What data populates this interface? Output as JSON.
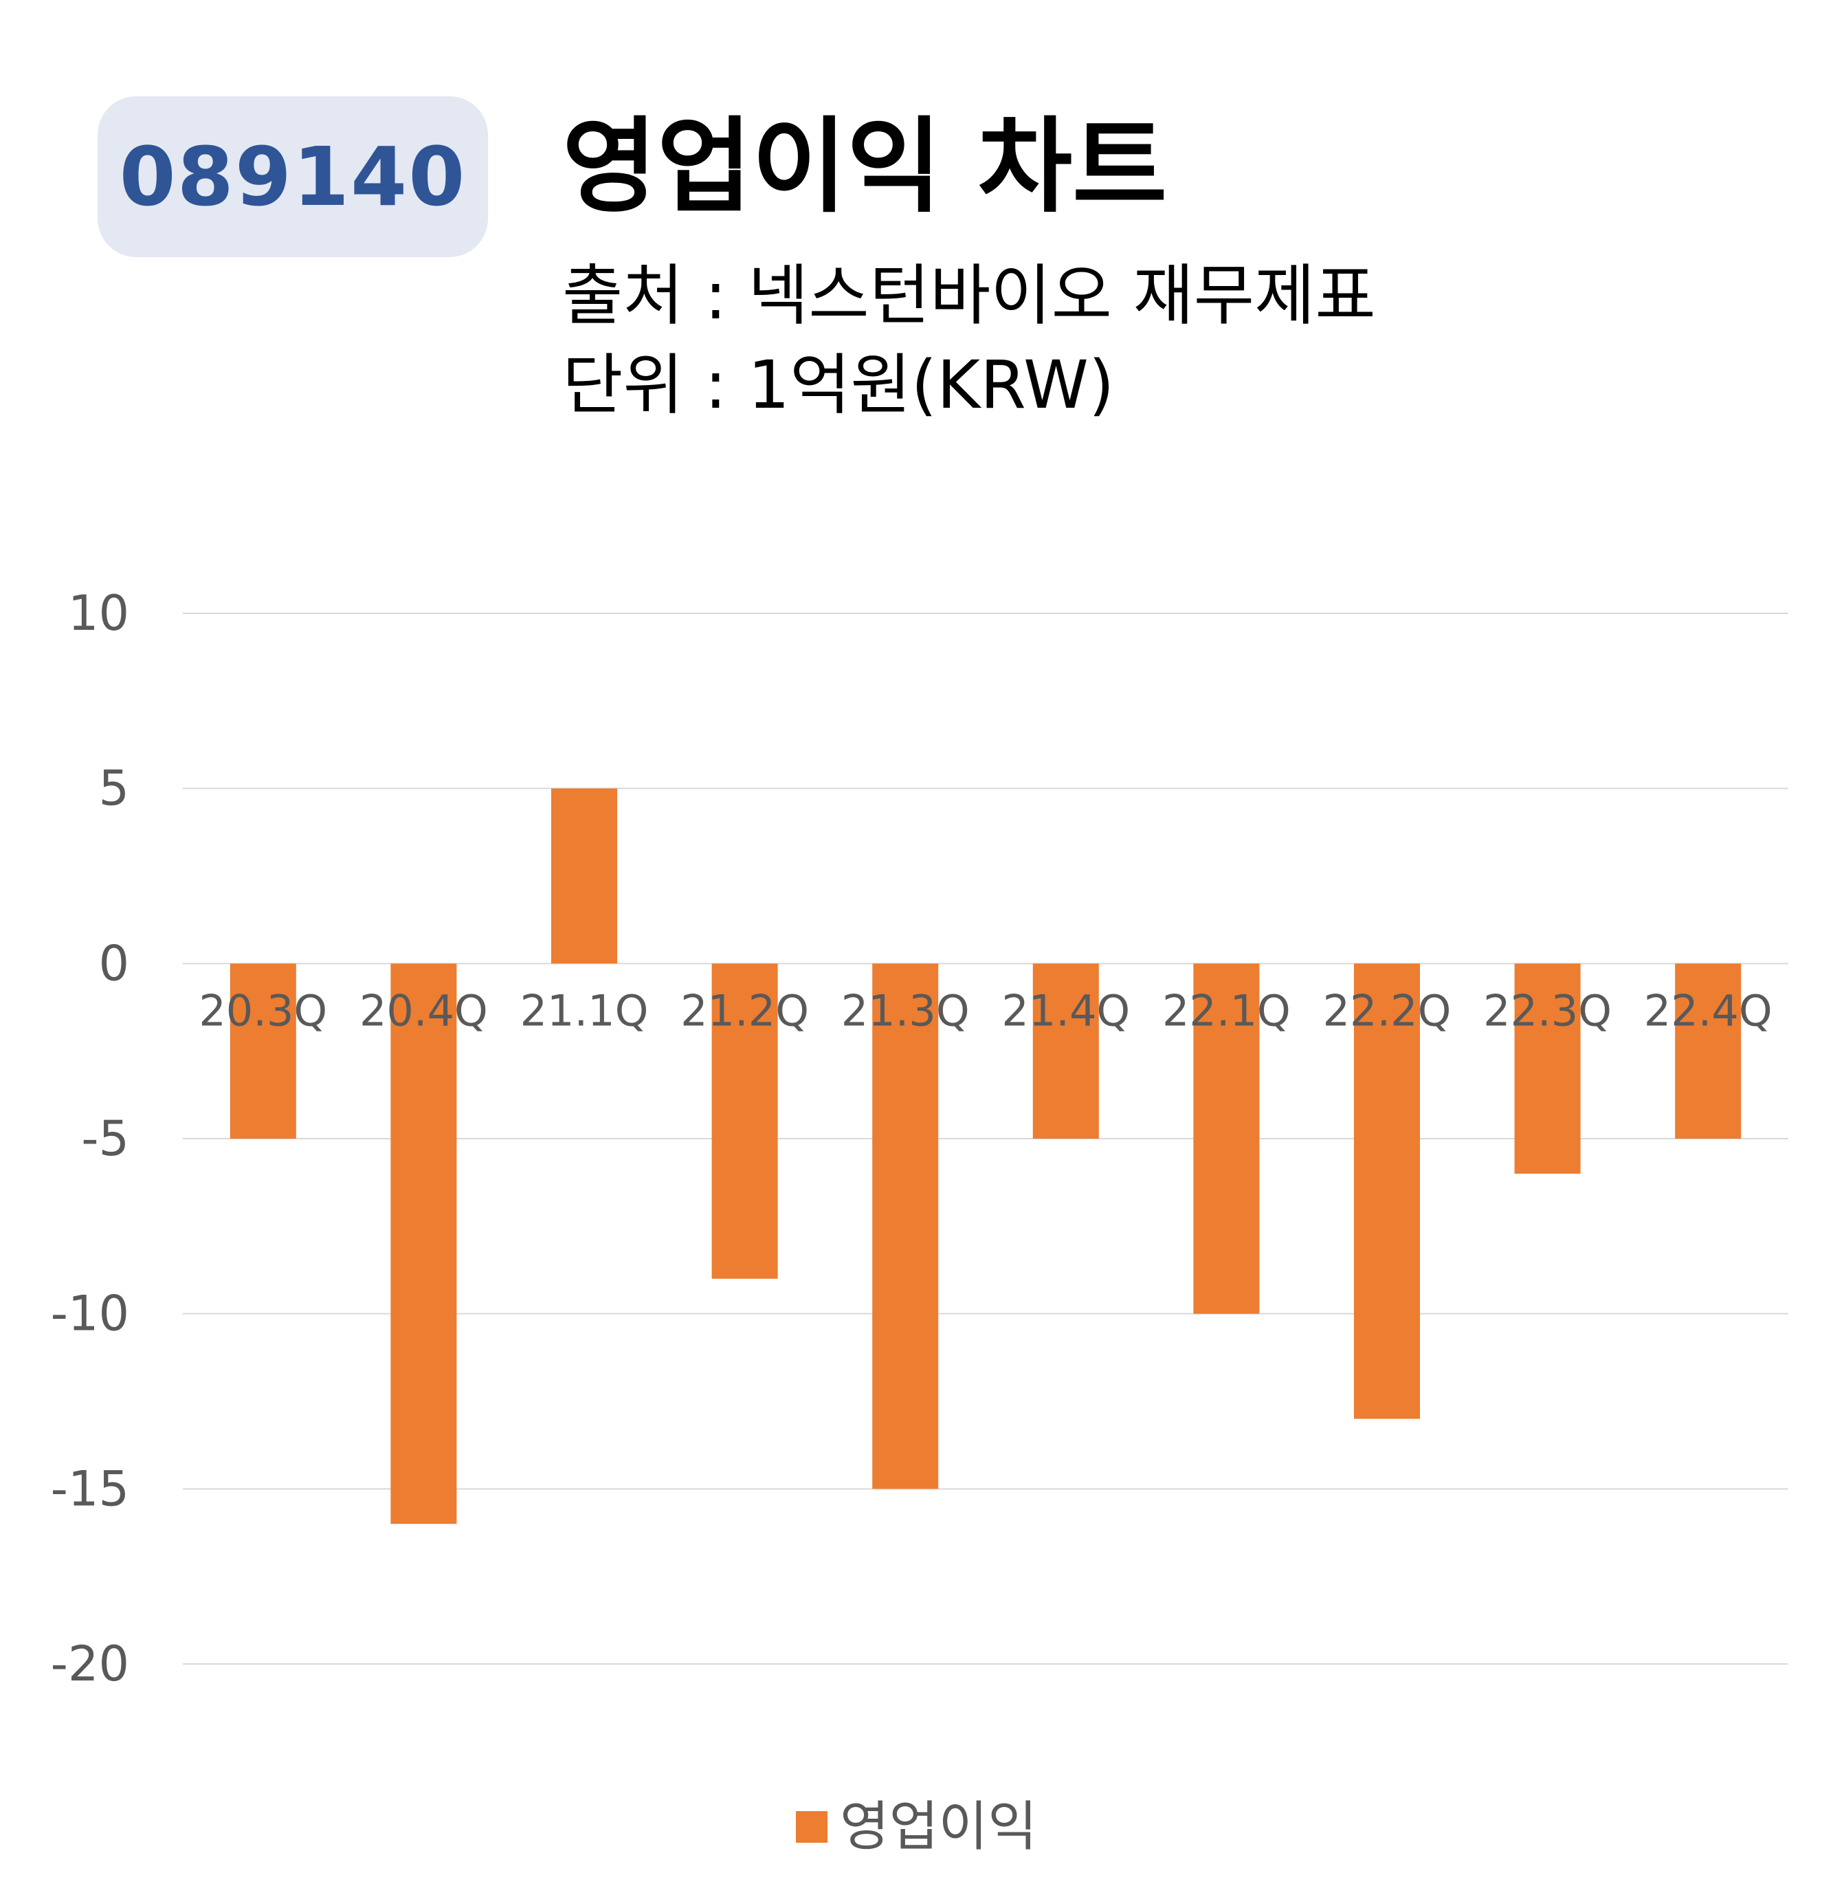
{
  "header": {
    "code": "089140",
    "title": "영업이익 차트",
    "source": "출처 : 넥스턴바이오 재무제표",
    "unit": "단위 : 1억원(KRW)"
  },
  "colors": {
    "bar": "#ed7d31",
    "badge_bg": "#e3e8f3",
    "badge_text": "#2f5597",
    "grid": "#d9d9d9",
    "tick_text": "#595959"
  },
  "chart_data": {
    "type": "bar",
    "categories": [
      "20.3Q",
      "20.4Q",
      "21.1Q",
      "21.2Q",
      "21.3Q",
      "21.4Q",
      "22.1Q",
      "22.2Q",
      "22.3Q",
      "22.4Q"
    ],
    "series": [
      {
        "name": "영업이익",
        "values": [
          -5,
          -16,
          5,
          -9,
          -15,
          -5,
          -10,
          -13,
          -6,
          -5
        ]
      }
    ],
    "y_ticks": [
      "10",
      "5",
      "0",
      "-5",
      "-10",
      "-15",
      "-20"
    ],
    "ylim": [
      -20,
      10
    ],
    "grid": true,
    "legend_position": "bottom"
  }
}
